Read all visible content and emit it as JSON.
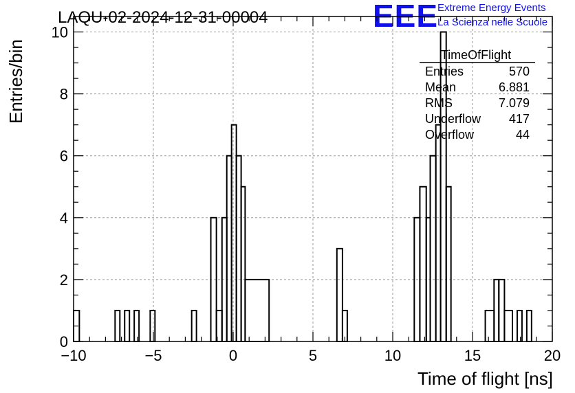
{
  "header": {
    "run_title": "LAQU-02-2024-12-31-00004",
    "logo_text": "EEE",
    "org_line1": "Extreme Energy Events",
    "org_line2": "La Scienza nelle Scuole"
  },
  "colors": {
    "brand": "#1010e8",
    "line": "#000000",
    "grid": "#9a9a9a"
  },
  "chart_data": {
    "type": "histogram",
    "title": "LAQU-02-2024-12-31-00004",
    "xlabel": "Time of flight [ns]",
    "ylabel": "Entries/bin",
    "xlim": [
      -10,
      20
    ],
    "ylim": [
      0,
      10.5
    ],
    "bin_width": 0.36,
    "x_ticks": [
      -10,
      -5,
      0,
      5,
      10,
      15,
      20
    ],
    "y_ticks": [
      0,
      2,
      4,
      6,
      8,
      10
    ],
    "x_tick_labels": [
      "−10",
      "−5",
      "0",
      "5",
      "10",
      "15",
      "20"
    ],
    "y_tick_labels": [
      "0",
      "2",
      "4",
      "6",
      "8",
      "10"
    ],
    "grid": true,
    "bins": [
      {
        "x0": -10.0,
        "x1": -9.64,
        "y": 1
      },
      {
        "x0": -7.4,
        "x1": -7.1,
        "y": 1
      },
      {
        "x0": -6.8,
        "x1": -6.5,
        "y": 1
      },
      {
        "x0": -6.2,
        "x1": -5.9,
        "y": 1
      },
      {
        "x0": -5.2,
        "x1": -4.9,
        "y": 1
      },
      {
        "x0": -2.6,
        "x1": -2.3,
        "y": 1
      },
      {
        "x0": -1.4,
        "x1": -1.05,
        "y": 4
      },
      {
        "x0": -1.05,
        "x1": -0.7,
        "y": 1
      },
      {
        "x0": -0.7,
        "x1": -0.4,
        "y": 4
      },
      {
        "x0": -0.4,
        "x1": -0.1,
        "y": 6
      },
      {
        "x0": -0.1,
        "x1": 0.2,
        "y": 7
      },
      {
        "x0": 0.2,
        "x1": 0.5,
        "y": 6
      },
      {
        "x0": 0.5,
        "x1": 0.75,
        "y": 5
      },
      {
        "x0": 0.75,
        "x1": 2.25,
        "y": 2
      },
      {
        "x0": 6.5,
        "x1": 6.85,
        "y": 3
      },
      {
        "x0": 6.85,
        "x1": 7.15,
        "y": 1
      },
      {
        "x0": 11.35,
        "x1": 11.7,
        "y": 4
      },
      {
        "x0": 11.7,
        "x1": 12.1,
        "y": 5
      },
      {
        "x0": 12.1,
        "x1": 12.35,
        "y": 4
      },
      {
        "x0": 12.35,
        "x1": 12.7,
        "y": 6
      },
      {
        "x0": 12.7,
        "x1": 13.0,
        "y": 7
      },
      {
        "x0": 13.0,
        "x1": 13.35,
        "y": 10
      },
      {
        "x0": 13.35,
        "x1": 13.65,
        "y": 5
      },
      {
        "x0": 15.8,
        "x1": 16.35,
        "y": 1
      },
      {
        "x0": 16.35,
        "x1": 16.65,
        "y": 2
      },
      {
        "x0": 16.65,
        "x1": 17.0,
        "y": 2
      },
      {
        "x0": 17.0,
        "x1": 17.5,
        "y": 1
      },
      {
        "x0": 17.8,
        "x1": 18.1,
        "y": 1
      },
      {
        "x0": 18.4,
        "x1": 18.7,
        "y": 1
      }
    ],
    "stats_box": {
      "title": "TimeOfFlight",
      "rows": [
        {
          "label": "Entries",
          "value": "570"
        },
        {
          "label": "Mean",
          "value": "6.881"
        },
        {
          "label": "RMS",
          "value": "7.079"
        },
        {
          "label": "Underflow",
          "value": "417"
        },
        {
          "label": "Overflow",
          "value": "44"
        }
      ]
    }
  }
}
